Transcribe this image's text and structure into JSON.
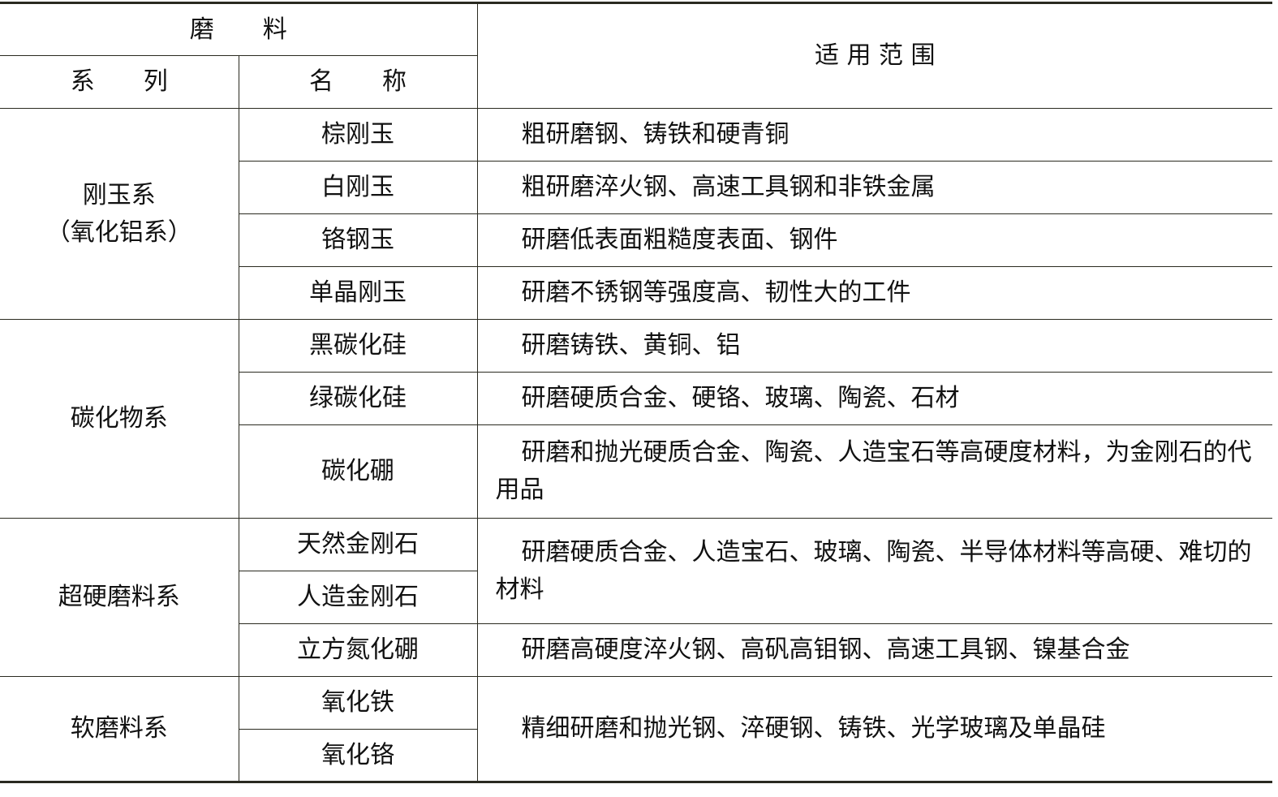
{
  "header": {
    "abrasive": "磨　　料",
    "series": "系　　列",
    "name": "名　　称",
    "application": "适 用 范 围"
  },
  "groups": [
    {
      "series": "刚玉系\n（氧化铝系）",
      "series_line1": "刚玉系",
      "series_line2": "（氧化铝系）",
      "items": [
        {
          "name": "棕刚玉",
          "application": "粗研磨钢、铸铁和硬青铜"
        },
        {
          "name": "白刚玉",
          "application": "粗研磨淬火钢、高速工具钢和非铁金属"
        },
        {
          "name": "铬钢玉",
          "application": "研磨低表面粗糙度表面、钢件"
        },
        {
          "name": "单晶刚玉",
          "application": "研磨不锈钢等强度高、韧性大的工件"
        }
      ]
    },
    {
      "series": "碳化物系",
      "items": [
        {
          "name": "黑碳化硅",
          "application": "研磨铸铁、黄铜、铝"
        },
        {
          "name": "绿碳化硅",
          "application": "研磨硬质合金、硬铬、玻璃、陶瓷、石材"
        },
        {
          "name": "碳化硼",
          "application": "研磨和抛光硬质合金、陶瓷、人造宝石等高硬度材料，为金刚石的代用品"
        }
      ]
    },
    {
      "series": "超硬磨料系",
      "items": [
        {
          "name": "天然金刚石"
        },
        {
          "name": "人造金刚石"
        },
        {
          "name": "立方氮化硼",
          "application": "研磨高硬度淬火钢、高矾高钼钢、高速工具钢、镍基合金"
        }
      ],
      "shared_application": "研磨硬质合金、人造宝石、玻璃、陶瓷、半导体材料等高硬、难切的材料"
    },
    {
      "series": "软磨料系",
      "items": [
        {
          "name": "氧化铁"
        },
        {
          "name": "氧化铬"
        }
      ],
      "shared_application": "精细研磨和抛光钢、淬硬钢、铸铁、光学玻璃及单晶硅"
    }
  ]
}
